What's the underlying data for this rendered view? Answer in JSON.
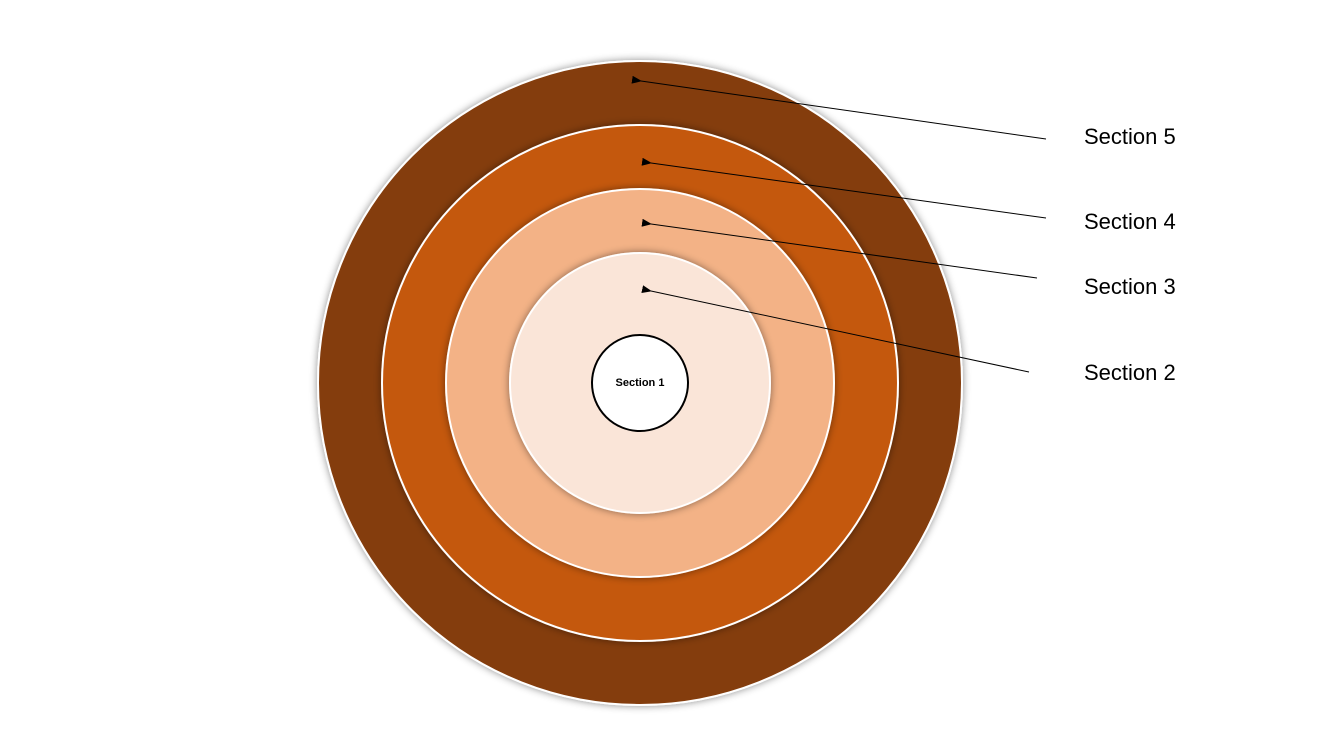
{
  "diagram": {
    "center": {
      "label": "Section 1",
      "color": "#FFFFFF"
    },
    "rings": [
      {
        "id": "section-2",
        "label": "Section 2",
        "color": "#FAE5D8"
      },
      {
        "id": "section-3",
        "label": "Section 3",
        "color": "#F3B286"
      },
      {
        "id": "section-4",
        "label": "Section 4",
        "color": "#C45911"
      },
      {
        "id": "section-5",
        "label": "Section 5",
        "color": "#843C0B"
      }
    ]
  }
}
